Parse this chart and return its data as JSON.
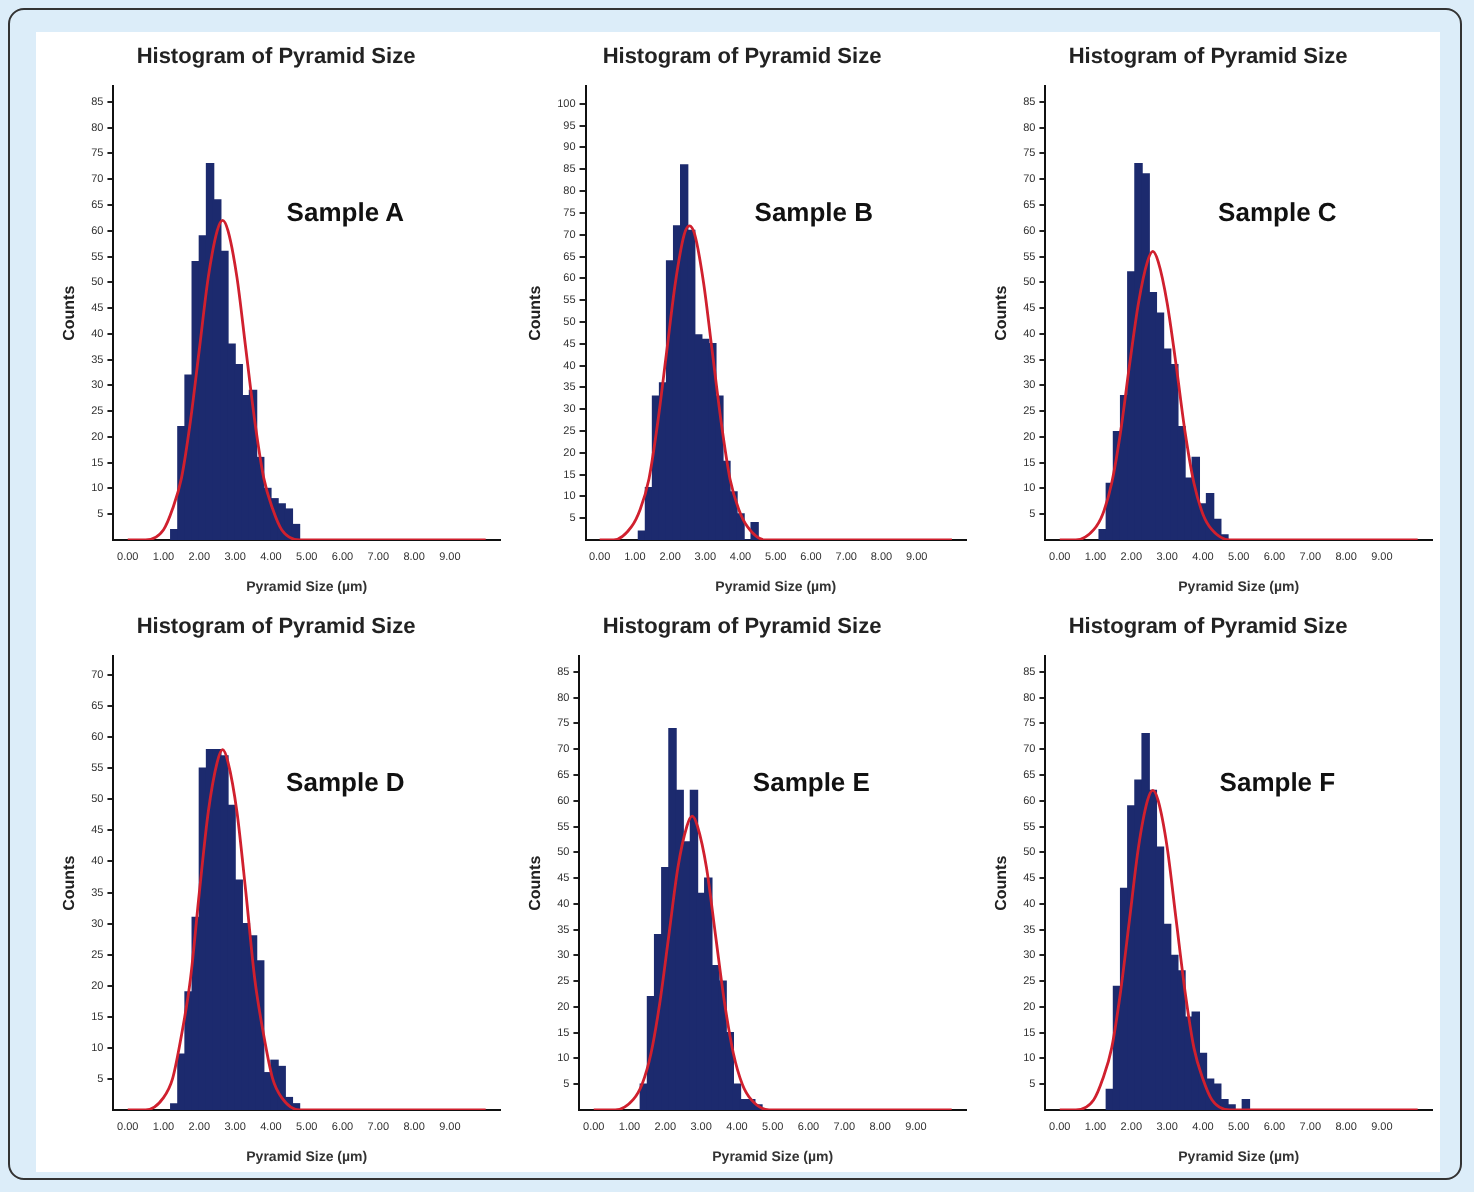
{
  "chart_data": [
    {
      "type": "histogram",
      "title": "Histogram of Pyramid Size",
      "xlabel": "Pyramid Size (µm)",
      "ylabel": "Counts",
      "annotations": [
        "Sample A"
      ],
      "bins": [
        1.2,
        1.4,
        1.6,
        1.8,
        2.0,
        2.2,
        2.4,
        2.6,
        2.8,
        3.0,
        3.2,
        3.4,
        3.6,
        3.8,
        4.0,
        4.2,
        4.4,
        4.6,
        4.8
      ],
      "xlim": [
        -0.4,
        10.4
      ],
      "xticks": [
        {
          "value": 0,
          "label": "0.00"
        },
        {
          "value": 1,
          "label": "1.00"
        },
        {
          "value": 2,
          "label": "2.00"
        },
        {
          "value": 3,
          "label": "3.00"
        },
        {
          "value": 4,
          "label": "4.00"
        },
        {
          "value": 5,
          "label": "5.00"
        },
        {
          "value": 6,
          "label": "6.00"
        },
        {
          "value": 7,
          "label": "7.00"
        },
        {
          "value": 8,
          "label": "8.00"
        },
        {
          "value": 9,
          "label": "9.00"
        }
      ],
      "ylim": [
        0,
        88
      ],
      "yticks": [
        5,
        10,
        15,
        20,
        25,
        30,
        35,
        40,
        45,
        50,
        55,
        60,
        65,
        70,
        75,
        80,
        85
      ],
      "series": [
        {
          "color": "#1c2a6e",
          "values": [
            2,
            22,
            32,
            54,
            59,
            73,
            66,
            56,
            38,
            34,
            28,
            29,
            16,
            10,
            8,
            7,
            6,
            3
          ]
        },
        {
          "type": "line",
          "color": "#d0202e",
          "x": [
            0,
            0.5,
            1.0,
            1.25,
            1.5,
            1.75,
            2.0,
            2.25,
            2.5,
            2.65,
            2.8,
            3.05,
            3.3,
            3.55,
            3.8,
            4.05,
            4.3,
            4.8,
            10
          ],
          "values": [
            0,
            0,
            2,
            6,
            12,
            23,
            37,
            51,
            60,
            62,
            60,
            51,
            37,
            23,
            12,
            6,
            2,
            0,
            0
          ]
        }
      ]
    },
    {
      "type": "histogram",
      "title": "Histogram of Pyramid Size",
      "xlabel": "Pyramid Size (µm)",
      "ylabel": "Counts",
      "annotations": [
        "Sample B"
      ],
      "bins": [
        1.1,
        1.3,
        1.5,
        1.7,
        1.9,
        2.1,
        2.3,
        2.5,
        2.7,
        2.9,
        3.1,
        3.3,
        3.5,
        3.7,
        3.9,
        4.1,
        4.3,
        4.5
      ],
      "xlim": [
        -0.4,
        10.4
      ],
      "xticks": [
        {
          "value": 0,
          "label": "0.00"
        },
        {
          "value": 1,
          "label": "1.00"
        },
        {
          "value": 2,
          "label": "2.00"
        },
        {
          "value": 3,
          "label": "3.00"
        },
        {
          "value": 4,
          "label": "4.00"
        },
        {
          "value": 5,
          "label": "5.00"
        },
        {
          "value": 6,
          "label": "6.00"
        },
        {
          "value": 7,
          "label": "7.00"
        },
        {
          "value": 8,
          "label": "8.00"
        },
        {
          "value": 9,
          "label": "9.00"
        }
      ],
      "ylim": [
        0,
        104
      ],
      "yticks": [
        5,
        10,
        15,
        20,
        25,
        30,
        35,
        40,
        45,
        50,
        55,
        60,
        65,
        70,
        75,
        80,
        85,
        90,
        95,
        100
      ],
      "series": [
        {
          "color": "#1c2a6e",
          "values": [
            2,
            12,
            33,
            36,
            64,
            72,
            86,
            71,
            47,
            46,
            45,
            33,
            18,
            11,
            6,
            0,
            4
          ]
        },
        {
          "type": "line",
          "color": "#d0202e",
          "x": [
            0,
            0.4,
            0.9,
            1.15,
            1.4,
            1.65,
            1.9,
            2.15,
            2.4,
            2.55,
            2.7,
            2.95,
            3.2,
            3.45,
            3.7,
            3.95,
            4.2,
            4.7,
            10
          ],
          "values": [
            0,
            0,
            3,
            7,
            14,
            27,
            43,
            59,
            70,
            72,
            70,
            59,
            43,
            27,
            14,
            7,
            3,
            0,
            0
          ]
        }
      ]
    },
    {
      "type": "histogram",
      "title": "Histogram of Pyramid Size",
      "xlabel": "Pyramid Size (µm)",
      "ylabel": "Counts",
      "annotations": [
        "Sample C"
      ],
      "bins": [
        1.1,
        1.3,
        1.5,
        1.7,
        1.9,
        2.1,
        2.3,
        2.5,
        2.7,
        2.9,
        3.1,
        3.3,
        3.5,
        3.7,
        3.9,
        4.1,
        4.3,
        4.5,
        4.7
      ],
      "xlim": [
        -0.4,
        10.4
      ],
      "xticks": [
        {
          "value": 0,
          "label": "0.00"
        },
        {
          "value": 1,
          "label": "1.00"
        },
        {
          "value": 2,
          "label": "2.00"
        },
        {
          "value": 3,
          "label": "3.00"
        },
        {
          "value": 4,
          "label": "4.00"
        },
        {
          "value": 5,
          "label": "5.00"
        },
        {
          "value": 6,
          "label": "6.00"
        },
        {
          "value": 7,
          "label": "7.00"
        },
        {
          "value": 8,
          "label": "8.00"
        },
        {
          "value": 9,
          "label": "9.00"
        }
      ],
      "ylim": [
        0,
        88
      ],
      "yticks": [
        5,
        10,
        15,
        20,
        25,
        30,
        35,
        40,
        45,
        50,
        55,
        60,
        65,
        70,
        75,
        80,
        85
      ],
      "series": [
        {
          "color": "#1c2a6e",
          "values": [
            2,
            11,
            21,
            28,
            52,
            73,
            71,
            48,
            44,
            37,
            34,
            22,
            12,
            16,
            7,
            9,
            4,
            1
          ]
        },
        {
          "type": "line",
          "color": "#d0202e",
          "x": [
            0,
            0.45,
            0.95,
            1.2,
            1.45,
            1.7,
            1.95,
            2.2,
            2.45,
            2.6,
            2.75,
            3.0,
            3.25,
            3.5,
            3.75,
            4.0,
            4.25,
            4.75,
            10
          ],
          "values": [
            0,
            0,
            2,
            5,
            11,
            21,
            34,
            46,
            54,
            56,
            54,
            46,
            34,
            21,
            11,
            5,
            2,
            0,
            0
          ]
        }
      ]
    },
    {
      "type": "histogram",
      "title": "Histogram of Pyramid Size",
      "xlabel": "Pyramid Size (µm)",
      "ylabel": "Counts",
      "annotations": [
        "Sample D"
      ],
      "bins": [
        1.2,
        1.4,
        1.6,
        1.8,
        2.0,
        2.2,
        2.4,
        2.6,
        2.8,
        3.0,
        3.2,
        3.4,
        3.6,
        3.8,
        4.0,
        4.2,
        4.4,
        4.6,
        4.8
      ],
      "xlim": [
        -0.4,
        10.4
      ],
      "xticks": [
        {
          "value": 0,
          "label": "0.00"
        },
        {
          "value": 1,
          "label": "1.00"
        },
        {
          "value": 2,
          "label": "2.00"
        },
        {
          "value": 3,
          "label": "3.00"
        },
        {
          "value": 4,
          "label": "4.00"
        },
        {
          "value": 5,
          "label": "5.00"
        },
        {
          "value": 6,
          "label": "6.00"
        },
        {
          "value": 7,
          "label": "7.00"
        },
        {
          "value": 8,
          "label": "8.00"
        },
        {
          "value": 9,
          "label": "9.00"
        }
      ],
      "ylim": [
        0,
        73
      ],
      "yticks": [
        5,
        10,
        15,
        20,
        25,
        30,
        35,
        40,
        45,
        50,
        55,
        60,
        65,
        70
      ],
      "series": [
        {
          "color": "#1c2a6e",
          "values": [
            1,
            9,
            19,
            31,
            55,
            58,
            58,
            57,
            49,
            37,
            30,
            28,
            24,
            6,
            8,
            7,
            2,
            1
          ]
        },
        {
          "type": "line",
          "color": "#d0202e",
          "x": [
            0,
            0.5,
            1.0,
            1.25,
            1.5,
            1.75,
            2.0,
            2.25,
            2.5,
            2.65,
            2.8,
            3.05,
            3.3,
            3.55,
            3.8,
            4.05,
            4.3,
            4.8,
            10
          ],
          "values": [
            0,
            0,
            2,
            5,
            12,
            21,
            35,
            48,
            56,
            58,
            56,
            48,
            35,
            21,
            12,
            5,
            2,
            0,
            0
          ]
        }
      ]
    },
    {
      "type": "histogram",
      "title": "Histogram of Pyramid Size",
      "xlabel": "Pyramid Size (µm)",
      "ylabel": "Counts",
      "annotations": [
        "Sample E"
      ],
      "bins": [
        1.3,
        1.5,
        1.7,
        1.9,
        2.1,
        2.3,
        2.5,
        2.7,
        2.9,
        3.1,
        3.3,
        3.5,
        3.7,
        3.9,
        4.1,
        4.3,
        4.5,
        4.7
      ],
      "xlim": [
        -0.4,
        10.4
      ],
      "xticks": [
        {
          "value": 0,
          "label": "0.00"
        },
        {
          "value": 1,
          "label": "1.00"
        },
        {
          "value": 2,
          "label": "2.00"
        },
        {
          "value": 3,
          "label": "3.00"
        },
        {
          "value": 4,
          "label": "4.00"
        },
        {
          "value": 5,
          "label": "5.00"
        },
        {
          "value": 6,
          "label": "6.00"
        },
        {
          "value": 7,
          "label": "7.00"
        },
        {
          "value": 8,
          "label": "8.00"
        },
        {
          "value": 9,
          "label": "9.00"
        }
      ],
      "ylim": [
        0,
        88
      ],
      "yticks": [
        5,
        10,
        15,
        20,
        25,
        30,
        35,
        40,
        45,
        50,
        55,
        60,
        65,
        70,
        75,
        80,
        85
      ],
      "series": [
        {
          "color": "#1c2a6e",
          "values": [
            5,
            22,
            34,
            47,
            74,
            62,
            52,
            62,
            42,
            45,
            28,
            25,
            15,
            5,
            2,
            2,
            1
          ]
        },
        {
          "type": "line",
          "color": "#d0202e",
          "x": [
            0,
            0.6,
            1.1,
            1.35,
            1.6,
            1.85,
            2.1,
            2.35,
            2.6,
            2.75,
            2.9,
            3.15,
            3.4,
            3.65,
            3.9,
            4.15,
            4.4,
            4.9,
            10
          ],
          "values": [
            0,
            0,
            2,
            5,
            11,
            21,
            34,
            47,
            55,
            57,
            55,
            47,
            34,
            21,
            11,
            5,
            2,
            0,
            0
          ]
        }
      ]
    },
    {
      "type": "histogram",
      "title": "Histogram of Pyramid Size",
      "xlabel": "Pyramid Size (µm)",
      "ylabel": "Counts",
      "annotations": [
        "Sample F"
      ],
      "bins": [
        1.3,
        1.5,
        1.7,
        1.9,
        2.1,
        2.3,
        2.5,
        2.7,
        2.9,
        3.1,
        3.3,
        3.5,
        3.7,
        3.9,
        4.1,
        4.3,
        4.5,
        4.7,
        4.9,
        5.1,
        5.3
      ],
      "xlim": [
        -0.4,
        10.4
      ],
      "xticks": [
        {
          "value": 0,
          "label": "0.00"
        },
        {
          "value": 1,
          "label": "1.00"
        },
        {
          "value": 2,
          "label": "2.00"
        },
        {
          "value": 3,
          "label": "3.00"
        },
        {
          "value": 4,
          "label": "4.00"
        },
        {
          "value": 5,
          "label": "5.00"
        },
        {
          "value": 6,
          "label": "6.00"
        },
        {
          "value": 7,
          "label": "7.00"
        },
        {
          "value": 8,
          "label": "8.00"
        },
        {
          "value": 9,
          "label": "9.00"
        }
      ],
      "ylim": [
        0,
        88
      ],
      "yticks": [
        5,
        10,
        15,
        20,
        25,
        30,
        35,
        40,
        45,
        50,
        55,
        60,
        65,
        70,
        75,
        80,
        85
      ],
      "series": [
        {
          "color": "#1c2a6e",
          "values": [
            4,
            24,
            43,
            59,
            64,
            73,
            62,
            51,
            36,
            30,
            27,
            18,
            19,
            11,
            6,
            5,
            2,
            1,
            0,
            2
          ]
        },
        {
          "type": "line",
          "color": "#d0202e",
          "x": [
            0,
            0.45,
            0.95,
            1.2,
            1.45,
            1.7,
            1.95,
            2.2,
            2.45,
            2.6,
            2.75,
            3.0,
            3.25,
            3.5,
            3.75,
            4.0,
            4.25,
            4.75,
            10
          ],
          "values": [
            0,
            0,
            2,
            6,
            12,
            23,
            37,
            51,
            60,
            62,
            60,
            51,
            37,
            23,
            12,
            6,
            2,
            0,
            0
          ]
        }
      ]
    }
  ]
}
